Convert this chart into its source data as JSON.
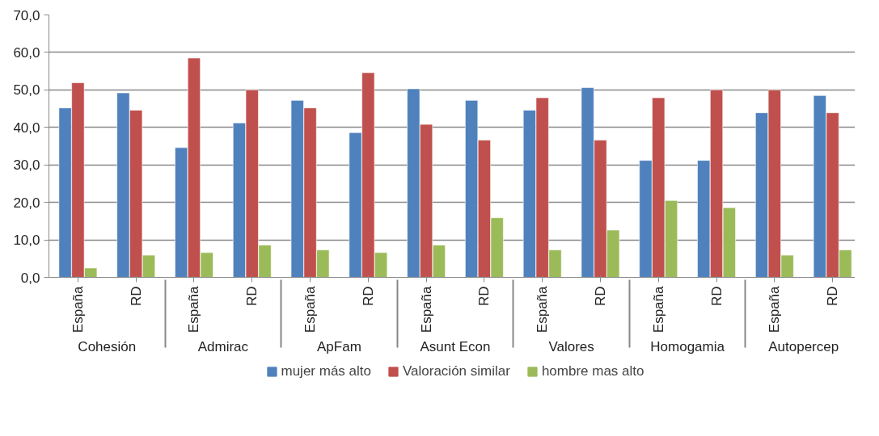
{
  "chart_data": {
    "type": "bar",
    "categories": [
      "España",
      "RD",
      "España",
      "RD",
      "España",
      "RD",
      "España",
      "RD",
      "España",
      "RD",
      "España",
      "RD",
      "España",
      "RD"
    ],
    "annotations": [
      "Cohesión",
      "Admirac",
      "ApFam",
      "Asunt Econ",
      "Valores",
      "Homogamia",
      "Autopercep"
    ],
    "series": [
      {
        "name": "mujer más alto",
        "color": "#4f81bd",
        "values": [
          45.2,
          49.2,
          34.6,
          41.2,
          47.2,
          38.6,
          50.3,
          47.2,
          44.6,
          50.6,
          31.2,
          31.2,
          43.9,
          48.5
        ]
      },
      {
        "name": "Valoración similar",
        "color": "#c0504d",
        "values": [
          51.9,
          44.6,
          58.5,
          50.0,
          45.2,
          54.6,
          40.8,
          36.6,
          47.9,
          36.6,
          47.9,
          50.0,
          50.0,
          43.9
        ]
      },
      {
        "name": "hombre mas alto",
        "color": "#9bbb59",
        "values": [
          2.5,
          5.9,
          6.6,
          8.6,
          7.3,
          6.6,
          8.6,
          15.9,
          7.3,
          12.6,
          20.5,
          18.6,
          5.9,
          7.3
        ]
      }
    ],
    "ylim": [
      0,
      70
    ],
    "yticks": [
      {
        "value": 0,
        "label": "0,0"
      },
      {
        "value": 10,
        "label": "10,0"
      },
      {
        "value": 20,
        "label": "20,0"
      },
      {
        "value": 30,
        "label": "30,0"
      },
      {
        "value": 40,
        "label": "40,0"
      },
      {
        "value": 50,
        "label": "50,0"
      },
      {
        "value": 60,
        "label": "60,0"
      },
      {
        "value": 70,
        "label": "70,0"
      }
    ],
    "grid": "y",
    "legend": "bottom"
  }
}
